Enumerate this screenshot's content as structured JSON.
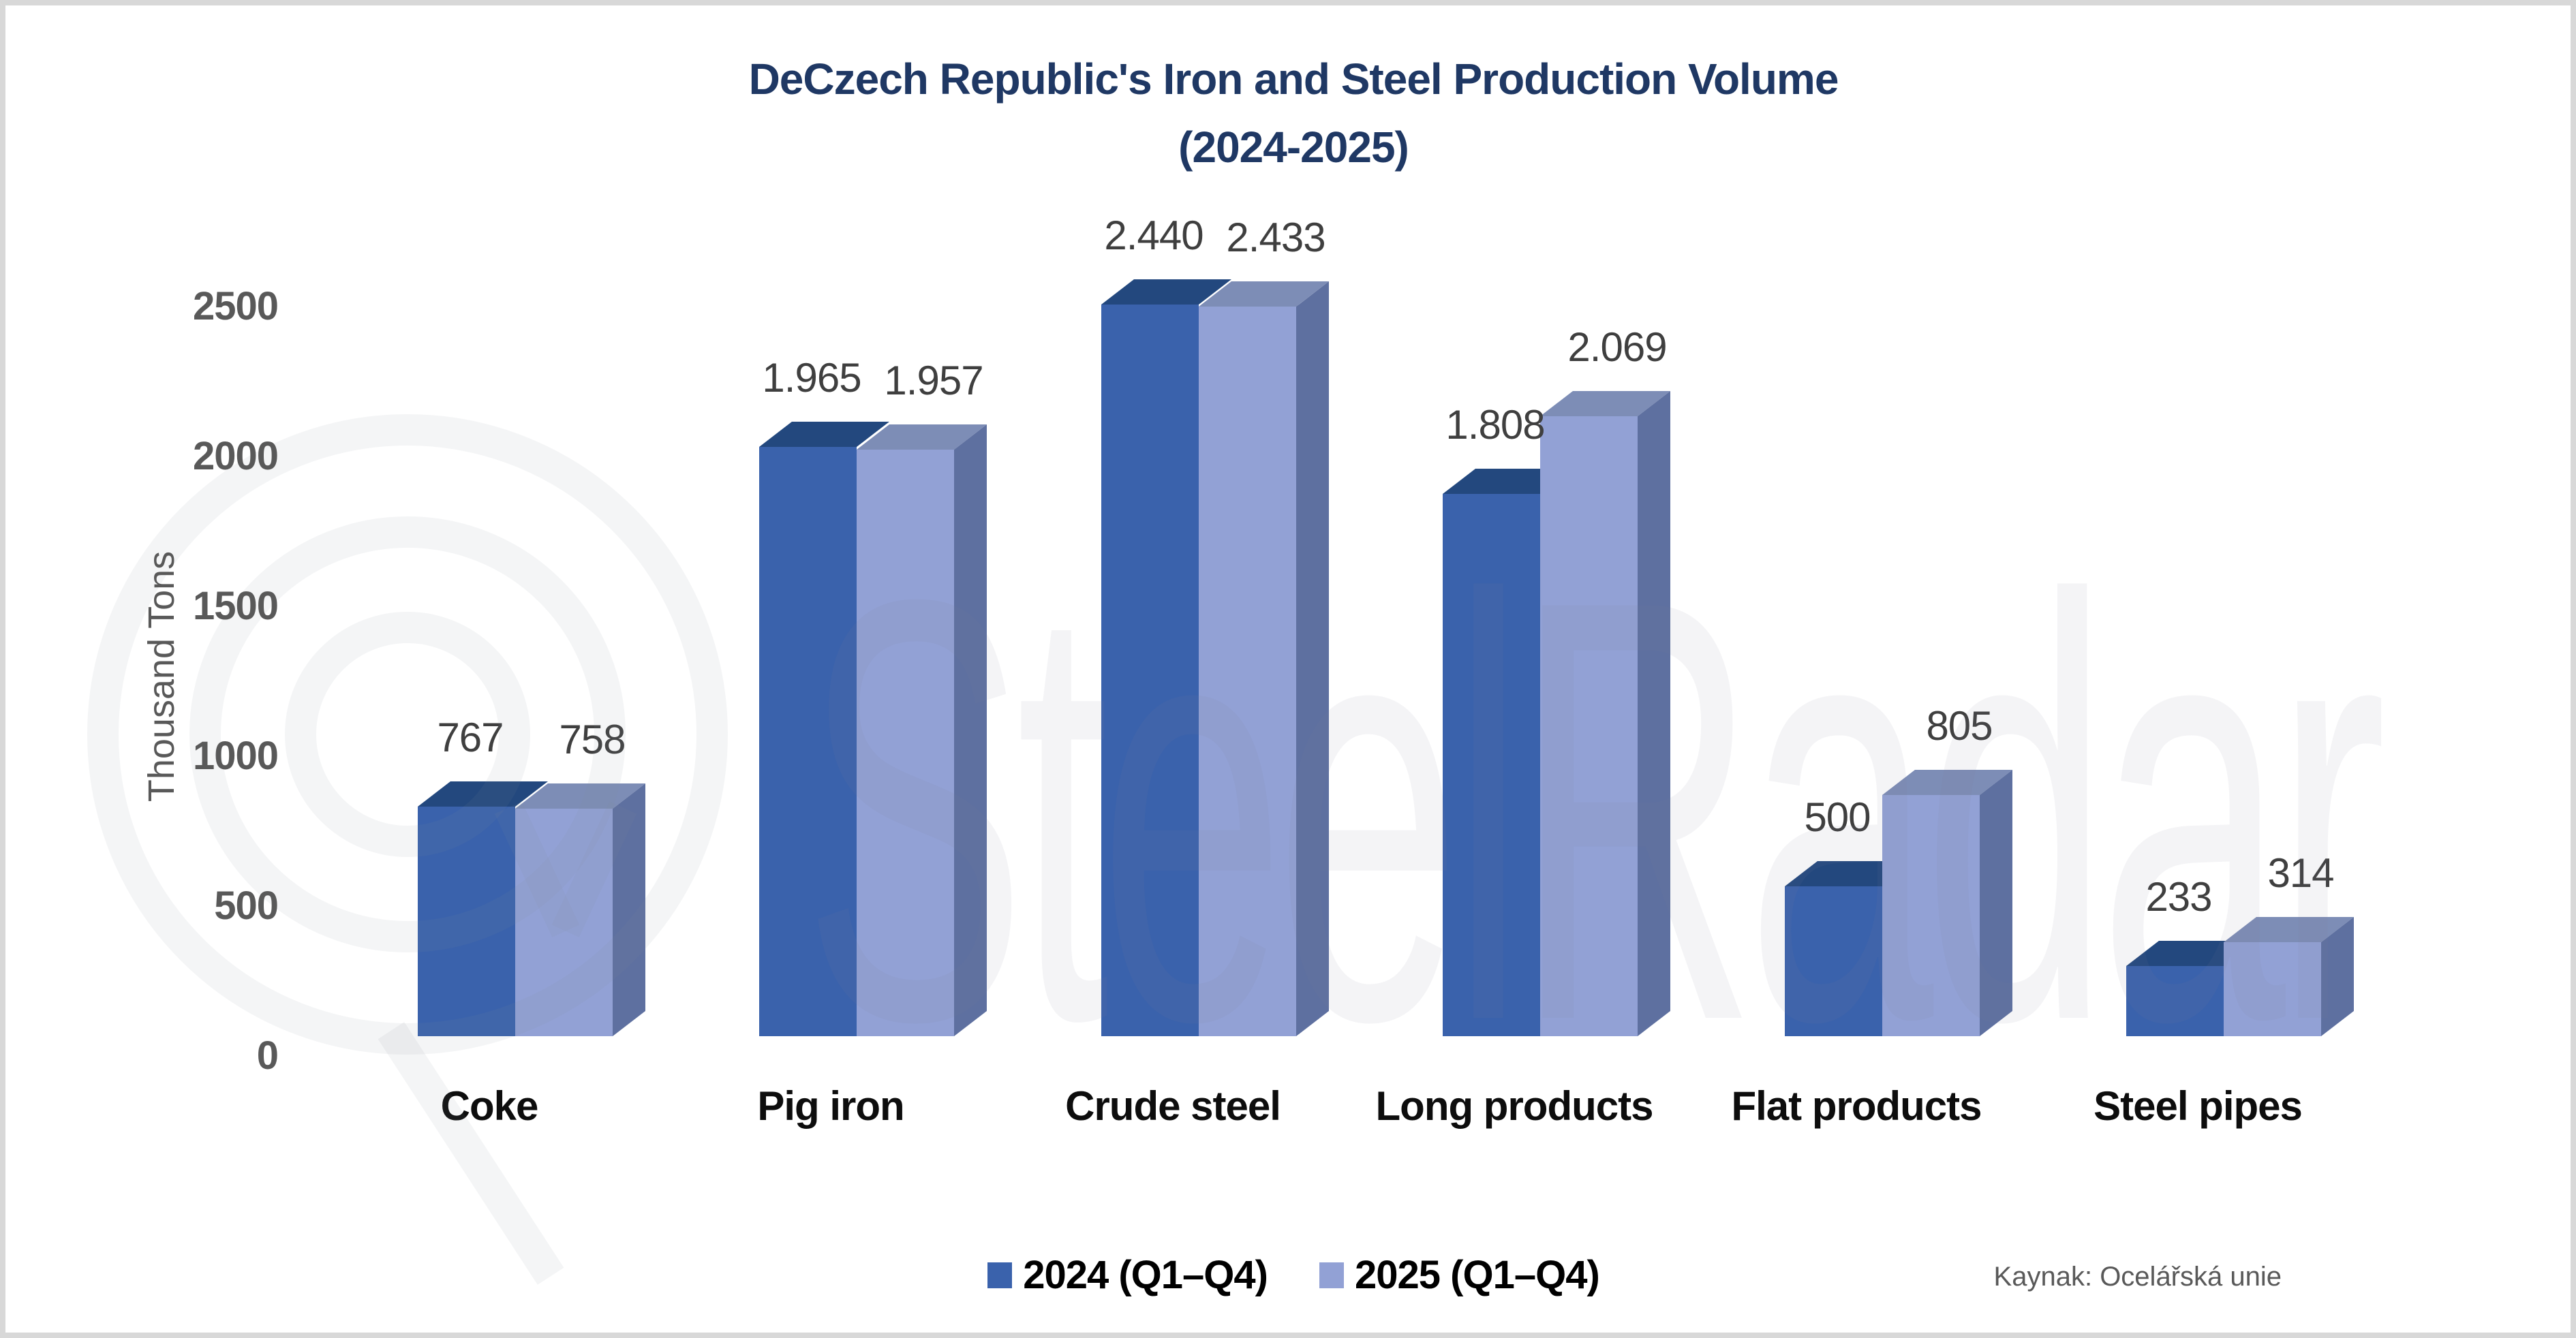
{
  "title": {
    "line1": "DeCzech Republic's Iron and Steel Production Volume",
    "line2": "(2024-2025)",
    "color": "#1F3864"
  },
  "y_axis": {
    "label": "Thousand Tons",
    "ticks": [
      "2500",
      "2000",
      "1500",
      "1000",
      "500",
      "0"
    ]
  },
  "legend": [
    {
      "label": "2024 (Q1–Q4)",
      "color": "#3A62AC"
    },
    {
      "label": "2025 (Q1–Q4)",
      "color": "#92A1D5"
    }
  ],
  "source": "Kaynak: Ocelářská unie",
  "watermark": {
    "text": "SteelRadar"
  },
  "chart_data": {
    "type": "bar",
    "title": "DeCzech Republic's Iron and Steel Production Volume (2024-2025)",
    "categories": [
      "Coke",
      "Pig iron",
      "Crude steel",
      "Long products",
      "Flat products",
      "Steel pipes"
    ],
    "series": [
      {
        "name": "2024 (Q1–Q4)",
        "values": [
          767,
          1965,
          2440,
          1808,
          500,
          233
        ],
        "labels": [
          "767",
          "1.965",
          "2.440",
          "1.808",
          "500",
          "233"
        ],
        "color": "#3A62AC",
        "top_color": "#23487E"
      },
      {
        "name": "2025 (Q1–Q4)",
        "values": [
          758,
          1957,
          2433,
          2069,
          805,
          314
        ],
        "labels": [
          "758",
          "1.957",
          "2.433",
          "2.069",
          "805",
          "314"
        ],
        "color": "#92A1D5",
        "top_color": "#7D8DB6",
        "side_color": "#5E70A0"
      }
    ],
    "xlabel": "",
    "ylabel": "Thousand Tons",
    "ylim": [
      0,
      2500
    ],
    "tick_step": 500,
    "grid": false,
    "legend_position": "bottom",
    "style": "3d-clustered-column",
    "data_label_position": "above"
  }
}
